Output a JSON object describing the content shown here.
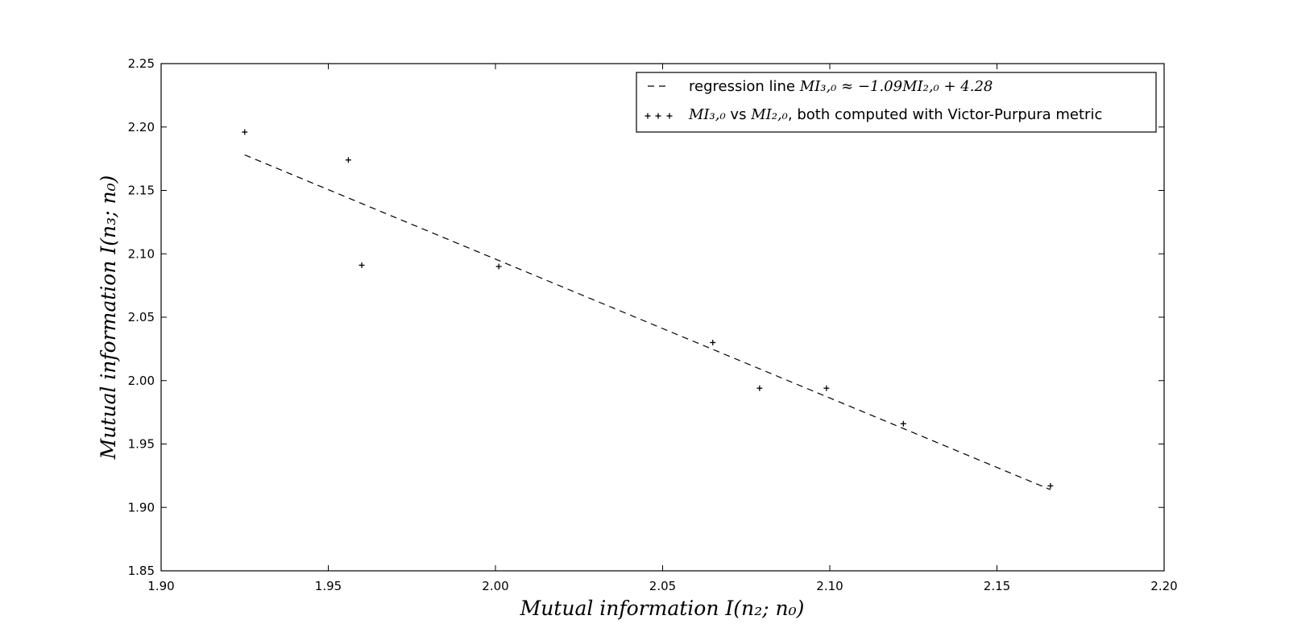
{
  "chart_data": {
    "type": "scatter",
    "title": "",
    "xlabel": "Mutual information I(n₂; n₀)",
    "ylabel": "Mutual information I(n₃; n₀)",
    "xlim": [
      1.9,
      2.2
    ],
    "ylim": [
      1.85,
      2.25
    ],
    "xticks": [
      1.9,
      1.95,
      2.0,
      2.05,
      2.1,
      2.15,
      2.2
    ],
    "yticks": [
      1.85,
      1.9,
      1.95,
      2.0,
      2.05,
      2.1,
      2.15,
      2.2,
      2.25
    ],
    "xtick_labels": [
      "1.90",
      "1.95",
      "2.00",
      "2.05",
      "2.10",
      "2.15",
      "2.20"
    ],
    "ytick_labels": [
      "1.85",
      "1.90",
      "1.95",
      "2.00",
      "2.05",
      "2.10",
      "2.15",
      "2.20",
      "2.25"
    ],
    "grid": false,
    "legend_position": "top-right",
    "series": [
      {
        "name": "regression line MI₃,₀ ≈ −1.09MI₂,₀ + 4.28",
        "kind": "line",
        "style": "dashed",
        "color": "#000000",
        "x": [
          1.925,
          2.166
        ],
        "y": [
          2.178,
          1.914
        ]
      },
      {
        "name": "MI₃,₀ vs MI₂,₀, both computed with Victor-Purpura metric",
        "kind": "scatter",
        "marker": "+",
        "color": "#000000",
        "x": [
          1.925,
          1.956,
          1.96,
          2.001,
          2.065,
          2.079,
          2.099,
          2.122,
          2.166
        ],
        "y": [
          2.196,
          2.174,
          2.091,
          2.09,
          2.03,
          1.994,
          1.994,
          1.966,
          1.917
        ]
      }
    ],
    "legend": [
      {
        "label_prefix": "regression line ",
        "label_math": "MI₃,₀ ≈ −1.09MI₂,₀ + 4.28",
        "label_suffix": ""
      },
      {
        "label_prefix": "",
        "label_math": "MI₃,₀",
        "label_middle": " vs ",
        "label_math2": "MI₂,₀",
        "label_suffix": ", both computed with Victor-Purpura metric"
      }
    ]
  }
}
